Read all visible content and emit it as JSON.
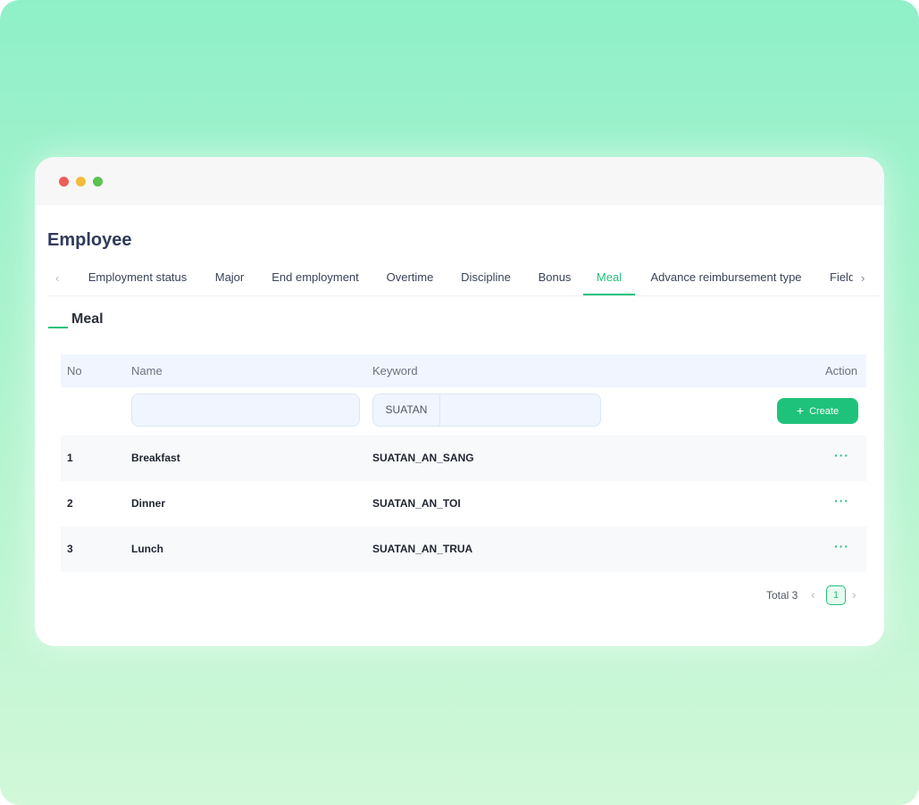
{
  "page": {
    "title": "Employee"
  },
  "tabs": {
    "prev_icon": "chevron-left-icon",
    "next_icon": "chevron-right-icon",
    "items": [
      {
        "label": "Employment status"
      },
      {
        "label": "Major"
      },
      {
        "label": "End employment"
      },
      {
        "label": "Overtime"
      },
      {
        "label": "Discipline"
      },
      {
        "label": "Bonus"
      },
      {
        "label": "Meal",
        "active": true
      },
      {
        "label": "Advance reimbursement type"
      },
      {
        "label": "Field"
      }
    ]
  },
  "section": {
    "title": "Meal"
  },
  "table": {
    "columns": {
      "no": "No",
      "name": "Name",
      "keyword": "Keyword",
      "action": "Action"
    },
    "filters": {
      "name_value": "",
      "keyword_prefix": "SUATAN",
      "keyword_value": ""
    },
    "create_label": "Create",
    "rows": [
      {
        "no": "1",
        "name": "Breakfast",
        "keyword": "SUATAN_AN_SANG",
        "action": "···"
      },
      {
        "no": "2",
        "name": "Dinner",
        "keyword": "SUATAN_AN_TOI",
        "action": "···"
      },
      {
        "no": "3",
        "name": "Lunch",
        "keyword": "SUATAN_AN_TRUA",
        "action": "···"
      }
    ]
  },
  "pagination": {
    "total": "Total 3",
    "current": "1",
    "prev": "‹",
    "next": "›"
  },
  "colors": {
    "accent": "#21c27b",
    "title": "#2f3b5c",
    "header_bg": "#f0f5ff"
  }
}
